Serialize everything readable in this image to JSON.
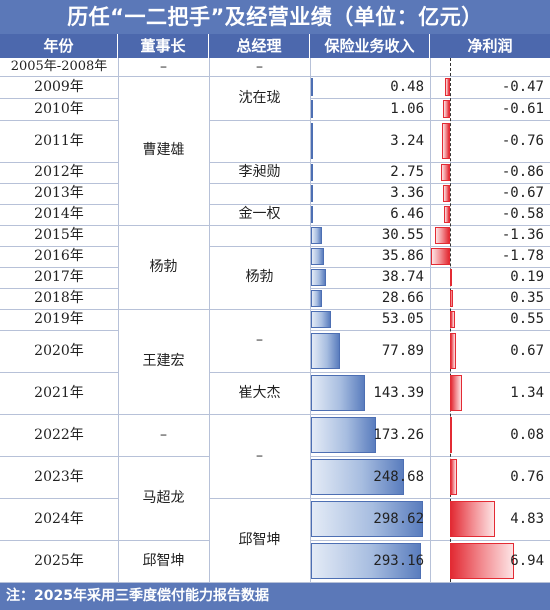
{
  "title": "历任“一二把手”及经营业绩（单位：亿元）",
  "headers": [
    "年份",
    "董事长",
    "总经理",
    "保险业务收入",
    "净利润"
  ],
  "footer": "注：2025年采用三季度偿付能力报告数据",
  "colors": {
    "header_bg": "#4c68ad",
    "title_bg": "#5b78b8",
    "revenue_bar": "#5a7dbe",
    "profit_bar": "#e22a33"
  },
  "rows": [
    {
      "year": "2005年-2008年",
      "revenue": null,
      "profit": null,
      "revenue_text": "",
      "profit_text": ""
    },
    {
      "year": "2009年",
      "revenue": 0.48,
      "profit": -0.47,
      "revenue_text": "0.48",
      "profit_text": "-0.47"
    },
    {
      "year": "2010年",
      "revenue": 1.06,
      "profit": -0.61,
      "revenue_text": "1.06",
      "profit_text": "-0.61"
    },
    {
      "year": "2011年",
      "revenue": 3.24,
      "profit": -0.76,
      "revenue_text": "3.24",
      "profit_text": "-0.76"
    },
    {
      "year": "2012年",
      "revenue": 2.75,
      "profit": -0.86,
      "revenue_text": "2.75",
      "profit_text": "-0.86"
    },
    {
      "year": "2013年",
      "revenue": 3.36,
      "profit": -0.67,
      "revenue_text": "3.36",
      "profit_text": "-0.67"
    },
    {
      "year": "2014年",
      "revenue": 6.46,
      "profit": -0.58,
      "revenue_text": "6.46",
      "profit_text": "-0.58"
    },
    {
      "year": "2015年",
      "revenue": 30.55,
      "profit": -1.36,
      "revenue_text": "30.55",
      "profit_text": "-1.36"
    },
    {
      "year": "2016年",
      "revenue": 35.86,
      "profit": -1.78,
      "revenue_text": "35.86",
      "profit_text": "-1.78"
    },
    {
      "year": "2017年",
      "revenue": 38.74,
      "profit": 0.19,
      "revenue_text": "38.74",
      "profit_text": "0.19"
    },
    {
      "year": "2018年",
      "revenue": 28.66,
      "profit": 0.35,
      "revenue_text": "28.66",
      "profit_text": "0.35"
    },
    {
      "year": "2019年",
      "revenue": 53.05,
      "profit": 0.55,
      "revenue_text": "53.05",
      "profit_text": "0.55"
    },
    {
      "year": "2020年",
      "revenue": 77.89,
      "profit": 0.67,
      "revenue_text": "77.89",
      "profit_text": "0.67"
    },
    {
      "year": "2021年",
      "revenue": 143.39,
      "profit": 1.34,
      "revenue_text": "143.39",
      "profit_text": "1.34"
    },
    {
      "year": "2022年",
      "revenue": 173.26,
      "profit": 0.08,
      "revenue_text": "173.26",
      "profit_text": "0.08"
    },
    {
      "year": "2023年",
      "revenue": 248.68,
      "profit": 0.76,
      "revenue_text": "248.68",
      "profit_text": "0.76"
    },
    {
      "year": "2024年",
      "revenue": 298.62,
      "profit": 4.83,
      "revenue_text": "298.62",
      "profit_text": "4.83"
    },
    {
      "year": "2025年",
      "revenue": 293.16,
      "profit": 6.94,
      "revenue_text": "293.16",
      "profit_text": "6.94"
    }
  ],
  "chairman_groups": [
    {
      "label": "–",
      "first": 0,
      "last": 0
    },
    {
      "label": "曹建雄",
      "first": 1,
      "last": 6
    },
    {
      "label": "杨勃",
      "first": 7,
      "last": 10
    },
    {
      "label": "王建宏",
      "first": 11,
      "last": 13
    },
    {
      "label": "–",
      "first": 14,
      "last": 14
    },
    {
      "label": "马超龙",
      "first": 15,
      "last": 16
    },
    {
      "label": "邱智坤",
      "first": 17,
      "last": 17
    }
  ],
  "manager_groups": [
    {
      "label": "–",
      "first": 0,
      "last": 0
    },
    {
      "label": "沈在珑",
      "first": 1,
      "last": 2
    },
    {
      "label": "",
      "first": 3,
      "last": 3
    },
    {
      "label": "李昶勋",
      "first": 4,
      "last": 4
    },
    {
      "label": "",
      "first": 5,
      "last": 5
    },
    {
      "label": "金一权",
      "first": 6,
      "last": 6
    },
    {
      "label": "",
      "first": 7,
      "last": 7
    },
    {
      "label": "杨勃",
      "first": 8,
      "last": 10
    },
    {
      "label": "–",
      "first": 11,
      "last": 12
    },
    {
      "label": "崔大杰",
      "first": 13,
      "last": 13
    },
    {
      "label": "–",
      "first": 14,
      "last": 15
    },
    {
      "label": "邱智坤",
      "first": 16,
      "last": 17
    }
  ],
  "chart_data": {
    "type": "table",
    "columns": [
      "年份",
      "保险业务收入",
      "净利润"
    ],
    "categories": [
      "2009年",
      "2010年",
      "2011年",
      "2012年",
      "2013年",
      "2014年",
      "2015年",
      "2016年",
      "2017年",
      "2018年",
      "2019年",
      "2020年",
      "2021年",
      "2022年",
      "2023年",
      "2024年",
      "2025年"
    ],
    "series": [
      {
        "name": "保险业务收入",
        "values": [
          0.48,
          1.06,
          3.24,
          2.75,
          3.36,
          6.46,
          30.55,
          35.86,
          38.74,
          28.66,
          53.05,
          77.89,
          143.39,
          173.26,
          248.68,
          298.62,
          293.16
        ]
      },
      {
        "name": "净利润",
        "values": [
          -0.47,
          -0.61,
          -0.76,
          -0.86,
          -0.67,
          -0.58,
          -1.36,
          -1.78,
          0.19,
          0.35,
          0.55,
          0.67,
          1.34,
          0.08,
          0.76,
          4.83,
          6.94
        ]
      }
    ],
    "title": "历任“一二把手”及经营业绩（单位：亿元）"
  }
}
